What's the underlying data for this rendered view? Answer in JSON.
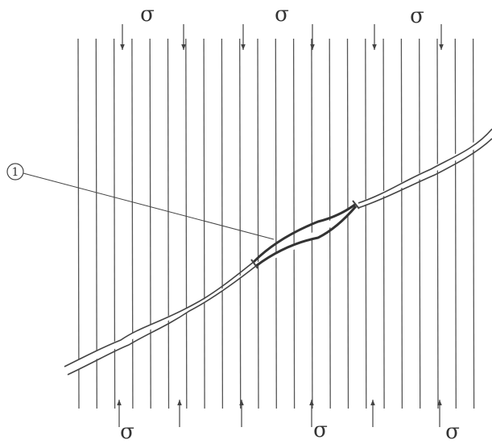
{
  "top_labels": [
    "σ",
    "σ",
    "σ"
  ],
  "bottom_labels": [
    "σ",
    "σ",
    "σ"
  ],
  "callout": "1"
}
